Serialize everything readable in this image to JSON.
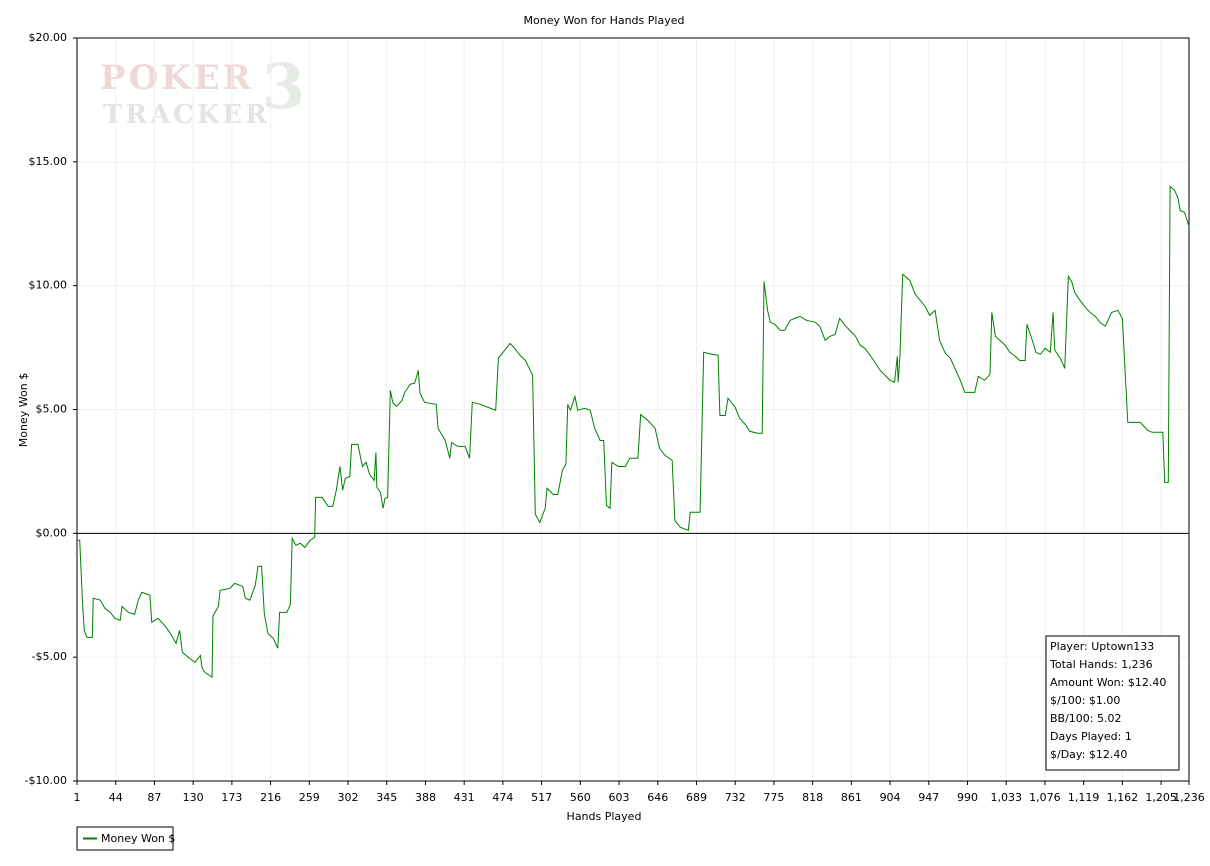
{
  "chart_data": {
    "type": "line",
    "title": "Money Won for Hands Played",
    "x_label": "Hands Played",
    "y_label": "Money Won $",
    "watermark": {
      "line1": "POKER",
      "line2": "TRACKER",
      "mark": "3"
    },
    "xlim": [
      1,
      1236
    ],
    "ylim": [
      -10,
      20
    ],
    "xticks": [
      1,
      44,
      87,
      130,
      173,
      216,
      259,
      302,
      345,
      388,
      431,
      474,
      517,
      560,
      603,
      646,
      689,
      732,
      775,
      818,
      861,
      904,
      947,
      990,
      {
        "value": 1033,
        "label": "1,033"
      },
      {
        "value": 1076,
        "label": "1,076"
      },
      {
        "value": 1119,
        "label": "1,119"
      },
      {
        "value": 1162,
        "label": "1,162"
      },
      {
        "value": 1205,
        "label": "1,205"
      },
      {
        "value": 1236,
        "label": "1,236"
      }
    ],
    "yticks": [
      {
        "value": -10,
        "label": "-$10.00"
      },
      {
        "value": -5,
        "label": "-$5.00"
      },
      {
        "value": 0,
        "label": "$0.00"
      },
      {
        "value": 5,
        "label": "$5.00"
      },
      {
        "value": 10,
        "label": "$10.00"
      },
      {
        "value": 15,
        "label": "$15.00"
      },
      {
        "value": 20,
        "label": "$20.00"
      }
    ],
    "grid": true,
    "zero_line": true,
    "legend": "bottom-left",
    "x": [
      1,
      4,
      7,
      9,
      12,
      18,
      19,
      27,
      32,
      38,
      43,
      49,
      51,
      58,
      65,
      69,
      73,
      82,
      84,
      91,
      99,
      104,
      111,
      115,
      118,
      126,
      132,
      138,
      140,
      143,
      151,
      152,
      158,
      160,
      171,
      176,
      185,
      188,
      193,
      199,
      202,
      206,
      209,
      213,
      219,
      224,
      226,
      234,
      238,
      240,
      244,
      249,
      254,
      260,
      265,
      266,
      273,
      280,
      285,
      289,
      293,
      296,
      299,
      304,
      306,
      313,
      318,
      322,
      326,
      331,
      333,
      334,
      338,
      341,
      343,
      346,
      349,
      352,
      356,
      362,
      365,
      371,
      376,
      380,
      382,
      387,
      393,
      400,
      402,
      410,
      415,
      417,
      424,
      432,
      437,
      440,
      449,
      460,
      466,
      469,
      476,
      482,
      487,
      493,
      499,
      507,
      510,
      515,
      521,
      523,
      530,
      535,
      540,
      544,
      546,
      549,
      554,
      557,
      565,
      571,
      576,
      582,
      586,
      589,
      593,
      595,
      602,
      610,
      615,
      624,
      627,
      635,
      643,
      648,
      654,
      662,
      665,
      671,
      680,
      682,
      693,
      697,
      706,
      713,
      715,
      721,
      724,
      732,
      737,
      744,
      748,
      757,
      762,
      764,
      768,
      771,
      776,
      782,
      787,
      793,
      798,
      804,
      811,
      821,
      826,
      832,
      837,
      843,
      848,
      854,
      859,
      865,
      871,
      876,
      882,
      893,
      904,
      909,
      912,
      913,
      915,
      918,
      926,
      932,
      943,
      948,
      954,
      959,
      965,
      971,
      976,
      982,
      987,
      998,
      1002,
      1009,
      1015,
      1017,
      1021,
      1026,
      1032,
      1037,
      1043,
      1048,
      1054,
      1056,
      1062,
      1066,
      1071,
      1076,
      1082,
      1085,
      1087,
      1093,
      1098,
      1102,
      1106,
      1109,
      1115,
      1120,
      1126,
      1132,
      1137,
      1143,
      1150,
      1157,
      1162,
      1165,
      1168,
      1182,
      1190,
      1195,
      1204,
      1207,
      1209,
      1213,
      1215,
      1220,
      1224,
      1226,
      1231,
      1236
    ],
    "series": [
      {
        "name": "Money Won $",
        "color": "#008000",
        "values": [
          -0.28,
          -0.28,
          -2.7,
          -3.92,
          -4.2,
          -4.2,
          -2.62,
          -2.7,
          -3.03,
          -3.19,
          -3.43,
          -3.51,
          -2.95,
          -3.19,
          -3.27,
          -2.7,
          -2.38,
          -2.5,
          -3.59,
          -3.43,
          -3.75,
          -4.0,
          -4.44,
          -3.92,
          -4.8,
          -5.05,
          -5.21,
          -4.93,
          -5.45,
          -5.61,
          -5.81,
          -3.35,
          -2.95,
          -2.3,
          -2.22,
          -2.02,
          -2.14,
          -2.62,
          -2.7,
          -2.1,
          -1.33,
          -1.33,
          -3.23,
          -4.04,
          -4.24,
          -4.64,
          -3.19,
          -3.19,
          -2.87,
          -0.2,
          -0.48,
          -0.4,
          -0.57,
          -0.28,
          -0.16,
          1.45,
          1.45,
          1.09,
          1.09,
          1.74,
          2.7,
          1.74,
          2.22,
          2.3,
          3.59,
          3.59,
          2.7,
          2.87,
          2.38,
          2.14,
          3.27,
          1.86,
          1.66,
          1.01,
          1.41,
          1.45,
          5.77,
          5.25,
          5.13,
          5.37,
          5.69,
          6.02,
          6.06,
          6.58,
          5.65,
          5.29,
          5.25,
          5.21,
          4.24,
          3.75,
          3.03,
          3.67,
          3.51,
          3.51,
          3.03,
          5.29,
          5.21,
          5.05,
          4.97,
          7.07,
          7.39,
          7.67,
          7.47,
          7.19,
          6.98,
          6.38,
          0.77,
          0.44,
          1.01,
          1.82,
          1.57,
          1.57,
          2.54,
          2.79,
          5.21,
          4.97,
          5.53,
          4.97,
          5.05,
          4.97,
          4.24,
          3.75,
          3.75,
          1.13,
          1.01,
          2.87,
          2.7,
          2.7,
          3.03,
          3.03,
          4.8,
          4.56,
          4.24,
          3.43,
          3.15,
          2.95,
          0.52,
          0.24,
          0.12,
          0.85,
          0.85,
          7.31,
          7.23,
          7.19,
          4.76,
          4.76,
          5.45,
          5.09,
          4.64,
          4.36,
          4.12,
          4.04,
          4.04,
          10.17,
          9.0,
          8.52,
          8.44,
          8.2,
          8.2,
          8.6,
          8.68,
          8.76,
          8.6,
          8.52,
          8.36,
          7.79,
          7.95,
          8.03,
          8.68,
          8.4,
          8.2,
          7.99,
          7.59,
          7.47,
          7.19,
          6.58,
          6.18,
          6.1,
          7.15,
          6.1,
          7.19,
          10.46,
          10.21,
          9.65,
          9.16,
          8.8,
          9.0,
          7.79,
          7.3,
          7.07,
          6.66,
          6.18,
          5.69,
          5.69,
          6.34,
          6.18,
          6.42,
          8.92,
          7.95,
          7.79,
          7.59,
          7.31,
          7.15,
          6.98,
          6.98,
          8.44,
          7.79,
          7.31,
          7.23,
          7.47,
          7.31,
          8.92,
          7.39,
          7.07,
          6.66,
          10.38,
          10.13,
          9.73,
          9.41,
          9.16,
          8.92,
          8.76,
          8.52,
          8.36,
          8.92,
          9.0,
          8.68,
          6.58,
          4.48,
          4.48,
          4.16,
          4.08,
          4.08,
          4.08,
          2.06,
          2.06,
          14.01,
          13.85,
          13.52,
          13.04,
          12.96,
          12.4
        ]
      }
    ],
    "stats_box": [
      "Player: Uptown133",
      "Total Hands: 1,236",
      "Amount Won: $12.40",
      "$/100: $1.00",
      "BB/100: 5.02",
      "Days Played: 1",
      "$/Day: $12.40"
    ]
  }
}
